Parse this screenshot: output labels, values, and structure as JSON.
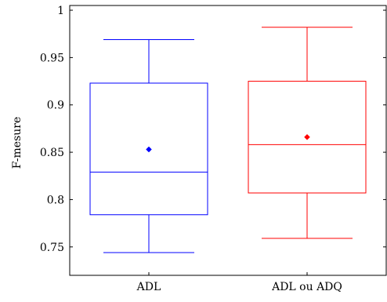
{
  "chart_data": {
    "type": "box",
    "title": "",
    "xlabel": "",
    "ylabel": "F-mesure",
    "ylim": [
      0.72,
      1.005
    ],
    "yticks": [
      0.75,
      0.8,
      0.85,
      0.9,
      0.95,
      1
    ],
    "ytick_labels": [
      "0.75",
      "0.8",
      "0.85",
      "0.9",
      "0.95",
      "1"
    ],
    "grid": false,
    "categories": [
      "ADL",
      "ADL ou ADQ"
    ],
    "series": [
      {
        "category": "ADL",
        "color": "#0000ff",
        "whisker_low": 0.744,
        "q1": 0.784,
        "median": 0.829,
        "q3": 0.923,
        "whisker_high": 0.969,
        "mean": 0.853
      },
      {
        "category": "ADL ou ADQ",
        "color": "#ff0000",
        "whisker_low": 0.759,
        "q1": 0.807,
        "median": 0.858,
        "q3": 0.925,
        "whisker_high": 0.982,
        "mean": 0.866
      }
    ]
  }
}
